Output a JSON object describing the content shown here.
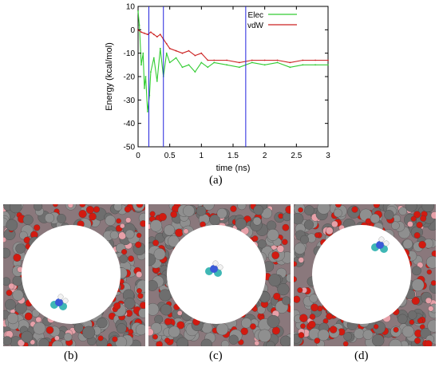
{
  "chart_data": {
    "type": "line",
    "title": "",
    "xlabel": "time (ns)",
    "ylabel": "Energy (kcal/mol)",
    "xlim": [
      0,
      3
    ],
    "ylim": [
      -50,
      10
    ],
    "xticks": [
      0,
      0.5,
      1,
      1.5,
      2,
      2.5,
      3
    ],
    "xtick_labels": [
      "0",
      "0.5",
      "1",
      "1.5",
      "2",
      "2.5",
      "3"
    ],
    "yticks": [
      10,
      0,
      -10,
      -20,
      -30,
      -40,
      -50
    ],
    "ytick_labels": [
      "10",
      "0",
      "-10",
      "-20",
      "-30",
      "-40",
      "-50"
    ],
    "legend_position": "top-right",
    "grid": false,
    "series": [
      {
        "name": "Elec",
        "color": "#33cc33",
        "x": [
          0,
          0.02,
          0.05,
          0.08,
          0.1,
          0.12,
          0.15,
          0.18,
          0.2,
          0.25,
          0.3,
          0.35,
          0.4,
          0.45,
          0.5,
          0.6,
          0.7,
          0.8,
          0.9,
          1.0,
          1.1,
          1.2,
          1.4,
          1.6,
          1.8,
          2.0,
          2.2,
          2.4,
          2.6,
          2.8,
          3.0
        ],
        "values": [
          8,
          2,
          -15,
          -10,
          -25,
          -20,
          -35,
          -28,
          -18,
          -12,
          -22,
          -8,
          -20,
          -10,
          -14,
          -12,
          -16,
          -15,
          -18,
          -14,
          -16,
          -14,
          -15,
          -16,
          -14,
          -15,
          -14,
          -16,
          -15,
          -15,
          -15
        ]
      },
      {
        "name": "vdW",
        "color": "#cc2222",
        "x": [
          0,
          0.05,
          0.1,
          0.15,
          0.2,
          0.25,
          0.3,
          0.35,
          0.4,
          0.45,
          0.5,
          0.6,
          0.7,
          0.8,
          0.9,
          1.0,
          1.1,
          1.2,
          1.4,
          1.6,
          1.8,
          2.0,
          2.2,
          2.4,
          2.6,
          2.8,
          3.0
        ],
        "values": [
          0,
          -1,
          -1.5,
          -2,
          -1,
          -2,
          -3,
          -2,
          -4,
          -6,
          -8,
          -9,
          -10,
          -9,
          -11,
          -10,
          -13,
          -13,
          -13,
          -14,
          -13,
          -13,
          -13,
          -14,
          -13,
          -13,
          -13
        ]
      }
    ],
    "vertical_markers_x": [
      0.17,
      0.4,
      1.7
    ],
    "marker_color": "#2222dd"
  },
  "captions": {
    "a": "(a)",
    "b": "(b)",
    "c": "(c)",
    "d": "(d)"
  }
}
